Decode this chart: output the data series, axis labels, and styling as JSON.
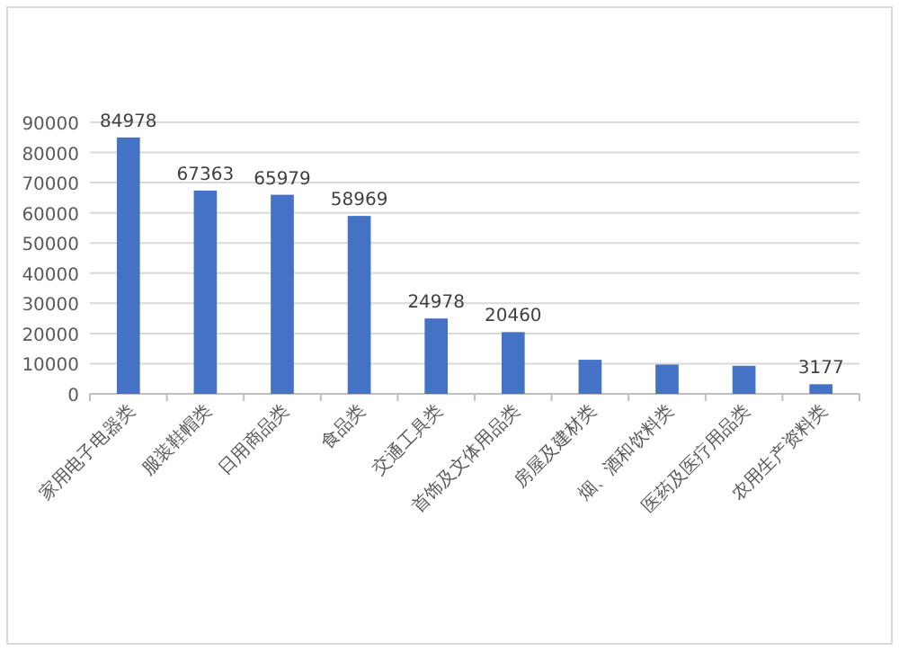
{
  "chart_data": {
    "type": "bar",
    "categories": [
      "家用电子电器类",
      "服装鞋帽类",
      "日用商品类",
      "食品类",
      "交通工具类",
      "首饰及文体用品类",
      "房屋及建材类",
      "烟、酒和饮料类",
      "医药及医疗用品类",
      "农用生产资料类"
    ],
    "values": [
      84978,
      67363,
      65979,
      58969,
      24978,
      20460,
      11300,
      9700,
      9300,
      3177
    ],
    "value_labels": [
      "84978",
      "67363",
      "65979",
      "58969",
      "24978",
      "20460",
      null,
      null,
      null,
      "3177"
    ],
    "color": "#4472c4",
    "ylim": [
      0,
      90000
    ],
    "yticks": [
      0,
      10000,
      20000,
      30000,
      40000,
      50000,
      60000,
      70000,
      80000,
      90000
    ],
    "grid": "y"
  }
}
